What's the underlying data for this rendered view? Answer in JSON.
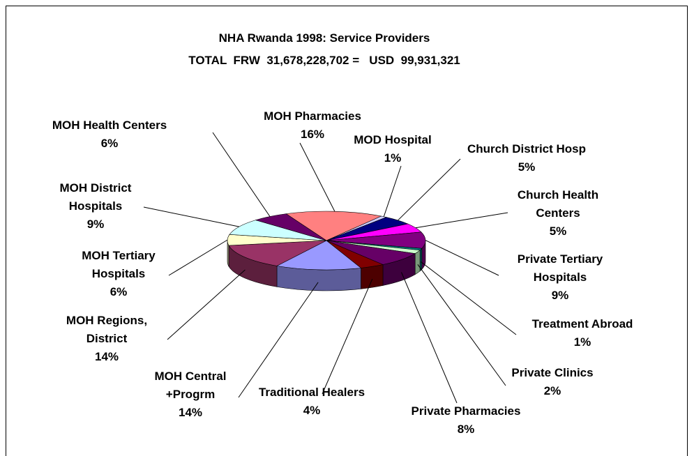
{
  "chart_data": {
    "type": "pie",
    "title": "NHA Rwanda 1998: Service Providers",
    "subtitle": "TOTAL  FRW  31,678,228,702 =   USD  99,931,321",
    "categories": [
      "MOH Pharmacies",
      "MOD Hospital",
      "Church District Hosp",
      "Church Health Centers",
      "Private Tertiary Hospitals",
      "Treatment Abroad",
      "Private Clinics",
      "Private Pharmacies",
      "Traditional Healers",
      "MOH Central +Progrm",
      "MOH Regions, District",
      "MOH Tertiary Hospitals",
      "MOH District Hospitals",
      "MOH Health Centers"
    ],
    "values": [
      16,
      1,
      5,
      5,
      9,
      1,
      2,
      8,
      4,
      14,
      14,
      6,
      9,
      6
    ],
    "value_labels": [
      "16%",
      "1%",
      "5%",
      "5%",
      "9%",
      "1%",
      "2%",
      "8%",
      "4%",
      "14%",
      "14%",
      "6%",
      "9%",
      "6%"
    ],
    "colors": [
      "#ff8080",
      "#ccccff",
      "#000080",
      "#ff00ff",
      "#800080",
      "#008080",
      "#ccffcc",
      "#660066",
      "#800000",
      "#9999ff",
      "#993366",
      "#ffffcc",
      "#ccffff",
      "#660066"
    ]
  }
}
